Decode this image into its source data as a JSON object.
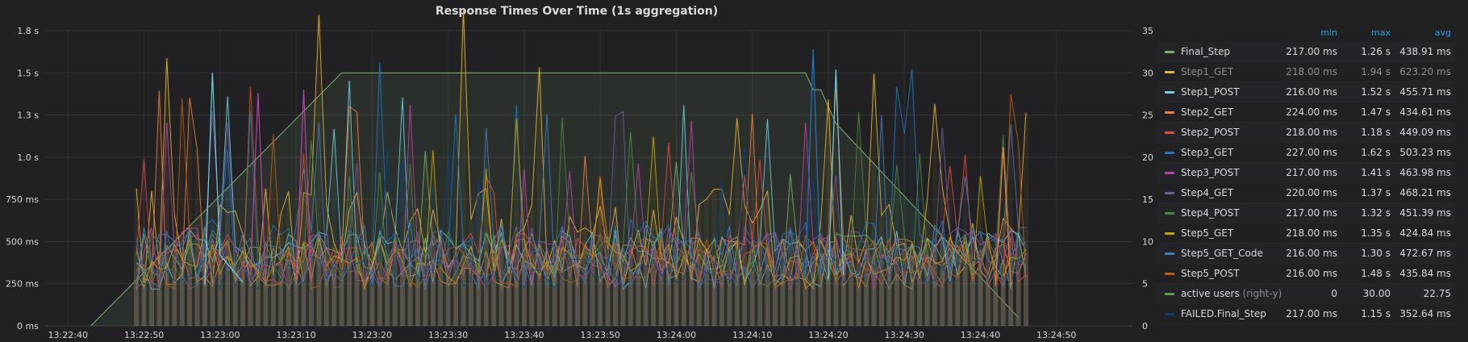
{
  "panel": {
    "title": "Response Times Over Time (1s aggregation)"
  },
  "legend": {
    "headers": {
      "min": "min",
      "max": "max",
      "avg": "avg"
    },
    "rows": [
      {
        "name": "Final_Step",
        "color": "#7eb26d",
        "min": "217.00 ms",
        "max": "1.26 s",
        "avg": "438.91 ms"
      },
      {
        "name": "Step1_GET",
        "color": "#eab839",
        "min": "218.00 ms",
        "max": "1.94 s",
        "avg": "623.20 ms",
        "dimmed": true
      },
      {
        "name": "Step1_POST",
        "color": "#6ed0e0",
        "min": "216.00 ms",
        "max": "1.52 s",
        "avg": "455.71 ms"
      },
      {
        "name": "Step2_GET",
        "color": "#ef843c",
        "min": "224.00 ms",
        "max": "1.47 s",
        "avg": "434.61 ms"
      },
      {
        "name": "Step2_POST",
        "color": "#e24d42",
        "min": "218.00 ms",
        "max": "1.18 s",
        "avg": "449.09 ms"
      },
      {
        "name": "Step3_GET",
        "color": "#1f78c1",
        "min": "227.00 ms",
        "max": "1.62 s",
        "avg": "503.23 ms"
      },
      {
        "name": "Step3_POST",
        "color": "#ba43a9",
        "min": "217.00 ms",
        "max": "1.41 s",
        "avg": "463.98 ms"
      },
      {
        "name": "Step4_GET",
        "color": "#705da0",
        "min": "220.00 ms",
        "max": "1.37 s",
        "avg": "468.21 ms"
      },
      {
        "name": "Step4_POST",
        "color": "#508642",
        "min": "217.00 ms",
        "max": "1.32 s",
        "avg": "451.39 ms"
      },
      {
        "name": "Step5_GET",
        "color": "#cca300",
        "min": "218.00 ms",
        "max": "1.35 s",
        "avg": "424.84 ms"
      },
      {
        "name": "Step5_GET_Code",
        "color": "#447ebc",
        "min": "216.00 ms",
        "max": "1.30 s",
        "avg": "472.67 ms"
      },
      {
        "name": "Step5_POST",
        "color": "#c15c17",
        "min": "216.00 ms",
        "max": "1.48 s",
        "avg": "435.84 ms"
      },
      {
        "name": "active users",
        "axis_note": "(right-y)",
        "color": "#629e51",
        "min": "0",
        "max": "30.00",
        "avg": "22.75"
      },
      {
        "name": "FAILED.Final_Step",
        "color": "#0a437c",
        "min": "217.00 ms",
        "max": "1.15 s",
        "avg": "352.64 ms"
      }
    ]
  },
  "chart_data": {
    "type": "line",
    "title": "Response Times Over Time (1s aggregation)",
    "x_ticks": [
      "13:22:40",
      "13:22:50",
      "13:23:00",
      "13:23:10",
      "13:23:20",
      "13:23:30",
      "13:23:40",
      "13:23:50",
      "13:24:00",
      "13:24:10",
      "13:24:20",
      "13:24:30",
      "13:24:40",
      "13:24:50"
    ],
    "x_range": [
      "13:22:37",
      "13:25:00"
    ],
    "y_left": {
      "ticks": [
        "0 ms",
        "250 ms",
        "500 ms",
        "750 ms",
        "1.0 s",
        "1.3 s",
        "1.5 s",
        "1.8 s"
      ],
      "values_ms": [
        0,
        250,
        500,
        750,
        1000,
        1250,
        1500,
        1750
      ],
      "ylim": [
        0,
        1750
      ],
      "unit": "ms"
    },
    "y_right": {
      "ticks": [
        "0",
        "5",
        "10",
        "15",
        "20",
        "25",
        "30",
        "35"
      ],
      "ylim": [
        0,
        35
      ]
    },
    "grid": true,
    "legend_position": "right",
    "active_users": {
      "axis": "right",
      "points": [
        [
          "13:22:43",
          0
        ],
        [
          "13:23:16",
          30
        ],
        [
          "13:24:17",
          30
        ],
        [
          "13:24:18",
          28
        ],
        [
          "13:24:19",
          28
        ],
        [
          "13:24:21",
          24
        ],
        [
          "13:24:45",
          1
        ]
      ]
    },
    "response_time_series": [
      {
        "name": "Final_Step",
        "color": "#7eb26d",
        "min_ms": 217,
        "max_ms": 1260,
        "avg_ms": 438.91
      },
      {
        "name": "Step1_GET",
        "color": "#eab839",
        "min_ms": 218,
        "max_ms": 1940,
        "avg_ms": 623.2
      },
      {
        "name": "Step1_POST",
        "color": "#6ed0e0",
        "min_ms": 216,
        "max_ms": 1520,
        "avg_ms": 455.71
      },
      {
        "name": "Step2_GET",
        "color": "#ef843c",
        "min_ms": 224,
        "max_ms": 1470,
        "avg_ms": 434.61
      },
      {
        "name": "Step2_POST",
        "color": "#e24d42",
        "min_ms": 218,
        "max_ms": 1180,
        "avg_ms": 449.09
      },
      {
        "name": "Step3_GET",
        "color": "#1f78c1",
        "min_ms": 227,
        "max_ms": 1620,
        "avg_ms": 503.23
      },
      {
        "name": "Step3_POST",
        "color": "#ba43a9",
        "min_ms": 217,
        "max_ms": 1410,
        "avg_ms": 463.98
      },
      {
        "name": "Step4_GET",
        "color": "#705da0",
        "min_ms": 220,
        "max_ms": 1370,
        "avg_ms": 468.21
      },
      {
        "name": "Step4_POST",
        "color": "#508642",
        "min_ms": 217,
        "max_ms": 1320,
        "avg_ms": 451.39
      },
      {
        "name": "Step5_GET",
        "color": "#cca300",
        "min_ms": 218,
        "max_ms": 1350,
        "avg_ms": 424.84
      },
      {
        "name": "Step5_GET_Code",
        "color": "#447ebc",
        "min_ms": 216,
        "max_ms": 1300,
        "avg_ms": 472.67
      },
      {
        "name": "Step5_POST",
        "color": "#c15c17",
        "min_ms": 216,
        "max_ms": 1480,
        "avg_ms": 435.84
      },
      {
        "name": "FAILED.Final_Step",
        "color": "#0a437c",
        "min_ms": 217,
        "max_ms": 1150,
        "avg_ms": 352.64
      }
    ],
    "series_peaks": [
      {
        "name": "Step1_POST",
        "points": [
          [
            "13:22:58",
            240
          ],
          [
            "13:22:59",
            1500
          ],
          [
            "13:23:00",
            420
          ],
          [
            "13:23:03",
            260
          ]
        ]
      },
      {
        "name": "Step3_POST",
        "points": [
          [
            "13:23:04",
            300
          ],
          [
            "13:23:05",
            1380
          ],
          [
            "13:23:06",
            260
          ]
        ]
      },
      {
        "name": "Step3_POST",
        "points": [
          [
            "13:23:10",
            260
          ],
          [
            "13:23:11",
            1400
          ],
          [
            "13:23:12",
            260
          ]
        ]
      },
      {
        "name": "Step3_GET",
        "points": [
          [
            "13:24:17",
            300
          ],
          [
            "13:24:18",
            1640
          ],
          [
            "13:24:19",
            300
          ]
        ]
      },
      {
        "name": "Step1_POST",
        "points": [
          [
            "13:24:20",
            280
          ],
          [
            "13:24:21",
            1520
          ],
          [
            "13:24:22",
            300
          ]
        ]
      },
      {
        "name": "Step2_GET",
        "points": [
          [
            "13:24:42",
            240
          ],
          [
            "13:24:43",
            1060
          ],
          [
            "13:24:44",
            240
          ]
        ]
      }
    ]
  }
}
